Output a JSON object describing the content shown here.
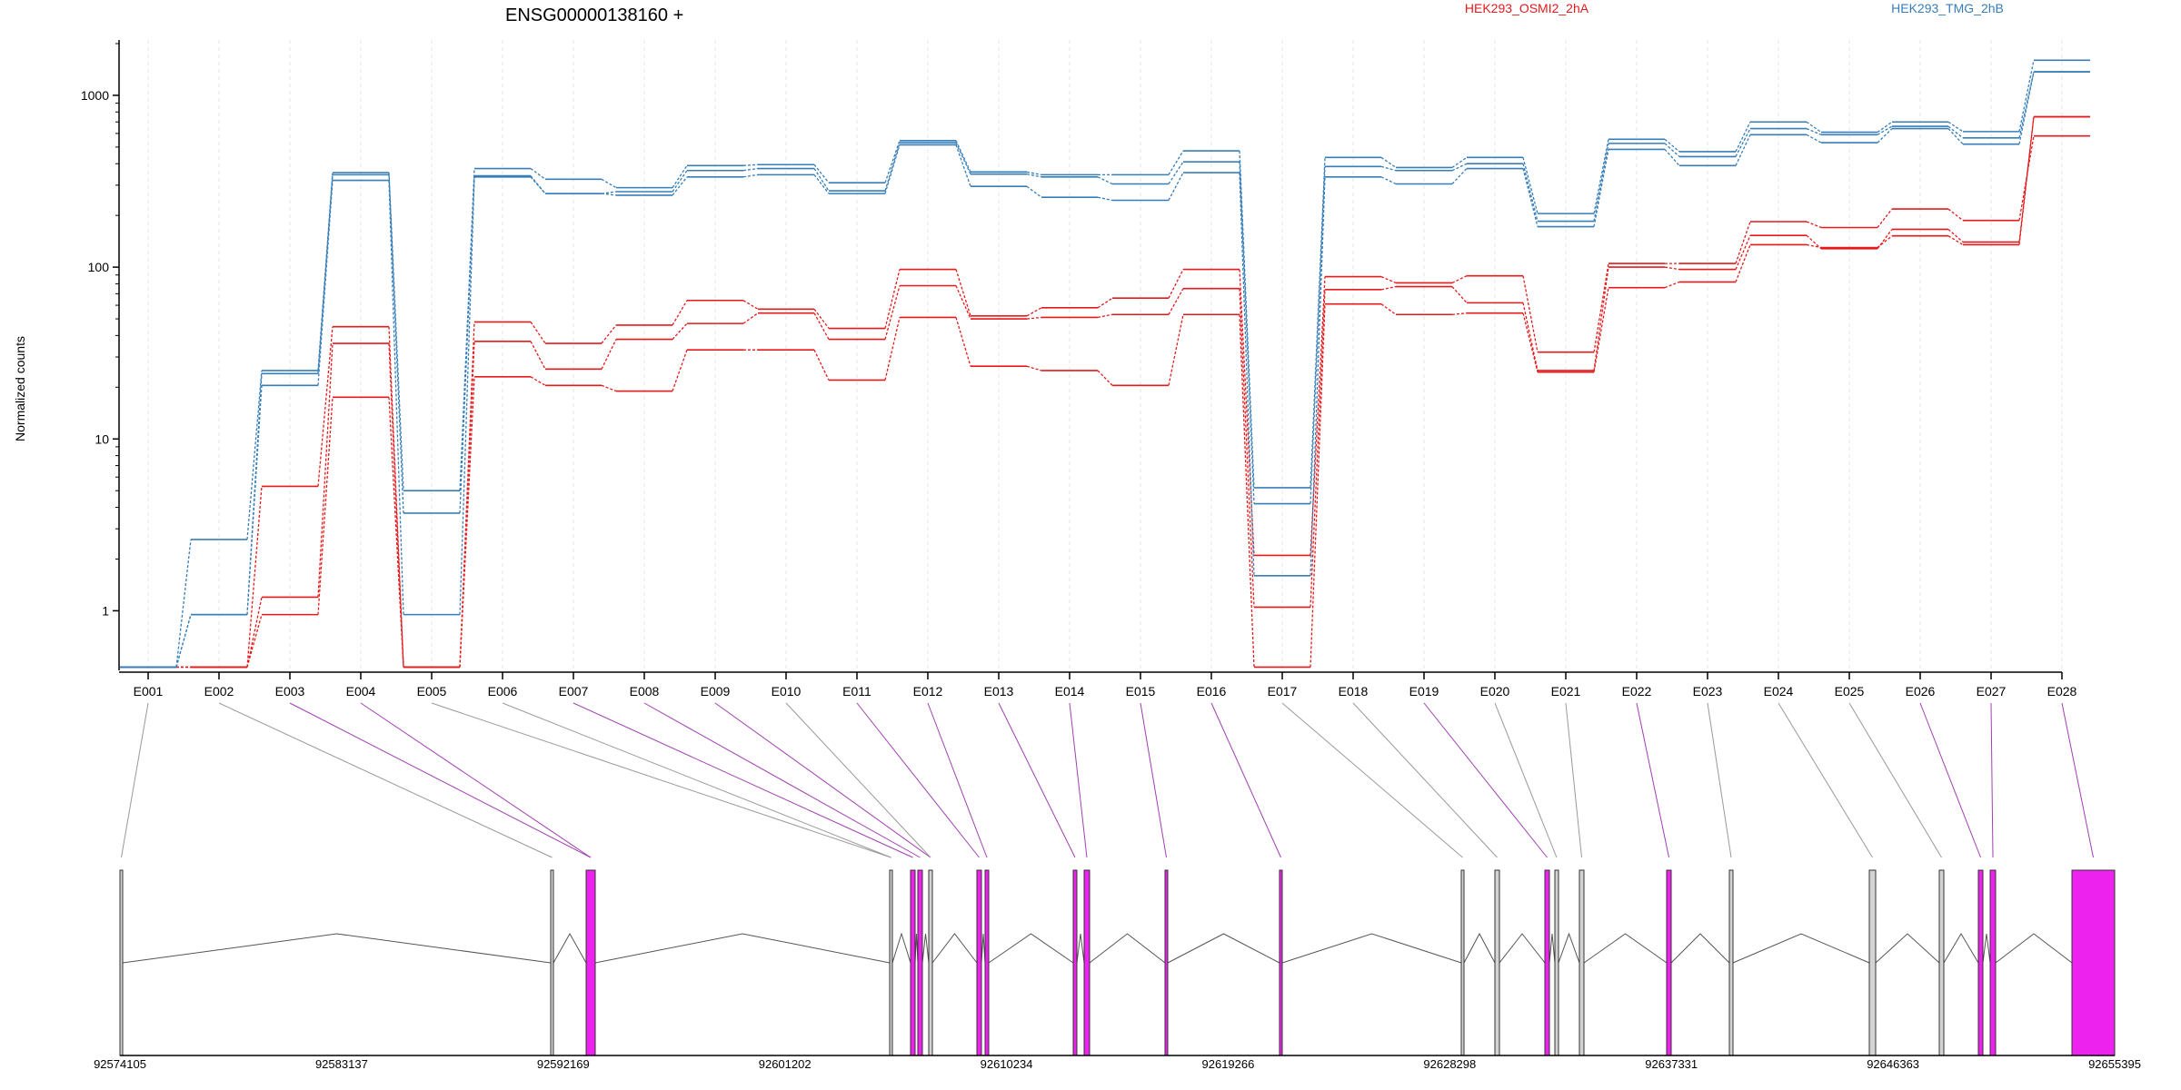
{
  "chart_data": {
    "type": "line",
    "title": "ENSG00000138160 +",
    "ylabel": "Normalized counts",
    "xlabel": "",
    "y_scale": "log",
    "ylim": [
      0.45,
      2100
    ],
    "y_ticks": [
      1,
      10,
      100,
      1000
    ],
    "y_tick_labels": [
      "1",
      "10",
      "100",
      "1000"
    ],
    "grid": "vertical dashed per exon",
    "legend_position": "top",
    "legend": [
      {
        "label": "HEK293_OSMI2_2hA",
        "color": "#e41a1c"
      },
      {
        "label": "HEK293_TMG_2hB",
        "color": "#377eb8"
      }
    ],
    "categories": [
      "E001",
      "E002",
      "E003",
      "E004",
      "E005",
      "E006",
      "E007",
      "E008",
      "E009",
      "E010",
      "E011",
      "E012",
      "E013",
      "E014",
      "E015",
      "E016",
      "E017",
      "E018",
      "E019",
      "E020",
      "E021",
      "E022",
      "E023",
      "E024",
      "E025",
      "E026",
      "E027",
      "E028"
    ],
    "series": [
      {
        "group": "HEK293_OSMI2_2hA",
        "color": "#e41a1c",
        "values": [
          0.47,
          0.47,
          0.95,
          17.5,
          0.47,
          23,
          20.5,
          19,
          33,
          33,
          22,
          51,
          26.5,
          25,
          20.5,
          53,
          0.47,
          61,
          53,
          54,
          24.5,
          76,
          82,
          135,
          130,
          152,
          135,
          750
        ]
      },
      {
        "group": "HEK293_OSMI2_2hA",
        "color": "#e41a1c",
        "values": [
          0.47,
          0.47,
          1.2,
          36,
          0.47,
          37,
          25.5,
          38,
          47,
          54,
          38,
          78,
          50,
          51,
          53,
          75,
          1.05,
          74,
          77,
          62,
          25,
          100,
          97,
          153,
          128,
          166,
          140,
          750
        ]
      },
      {
        "group": "HEK293_OSMI2_2hA",
        "color": "#e41a1c",
        "values": [
          0.47,
          0.47,
          5.3,
          45,
          0.47,
          48,
          36,
          46,
          64,
          57,
          44,
          97,
          52,
          58,
          66,
          97,
          2.1,
          88,
          81,
          89,
          32,
          105,
          105,
          184,
          170,
          218,
          187,
          580
        ]
      },
      {
        "group": "HEK293_TMG_2hB",
        "color": "#377eb8",
        "values": [
          0.47,
          0.95,
          20.5,
          320,
          0.95,
          335,
          268,
          262,
          335,
          345,
          268,
          515,
          295,
          255,
          245,
          355,
          1.6,
          335,
          305,
          375,
          172,
          485,
          390,
          590,
          530,
          640,
          520,
          1370
        ]
      },
      {
        "group": "HEK293_TMG_2hB",
        "color": "#377eb8",
        "values": [
          0.47,
          0.95,
          24,
          345,
          3.7,
          340,
          268,
          275,
          365,
          375,
          278,
          530,
          348,
          335,
          305,
          410,
          4.2,
          385,
          365,
          400,
          185,
          525,
          440,
          640,
          590,
          660,
          565,
          1370
        ]
      },
      {
        "group": "HEK293_TMG_2hB",
        "color": "#377eb8",
        "values": [
          0.47,
          2.6,
          25,
          355,
          5.0,
          375,
          325,
          290,
          390,
          395,
          310,
          545,
          358,
          345,
          345,
          475,
          5.2,
          435,
          380,
          435,
          205,
          555,
          470,
          700,
          610,
          700,
          615,
          1600
        ]
      }
    ]
  },
  "gene_model": {
    "coordinate_ticks": [
      "92574105",
      "92583137",
      "92592169",
      "92601202",
      "92610234",
      "92619266",
      "92628298",
      "92637331",
      "92646363",
      "92655395"
    ],
    "exon_colors": {
      "plain": "#d3d3d3",
      "highlighted": "#ee22ee"
    },
    "highlighted_exons": [
      "E003",
      "E004",
      "E007",
      "E008",
      "E009",
      "E011",
      "E012",
      "E013",
      "E014",
      "E015",
      "E016",
      "E019",
      "E022",
      "E026",
      "E027",
      "E028"
    ],
    "gray_exons": [
      "E001",
      "E002",
      "E005",
      "E006",
      "E010",
      "E017",
      "E018",
      "E020",
      "E021",
      "E023",
      "E024",
      "E025"
    ]
  }
}
